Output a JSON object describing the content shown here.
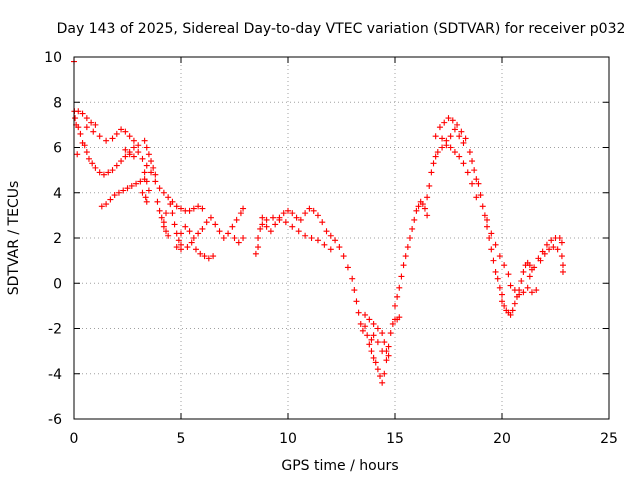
{
  "chart_data": {
    "type": "scatter",
    "title": "Day 143 of 2025, Sidereal Day-to-day VTEC variation (SDTVAR) for receiver p032",
    "xlabel": "GPS time / hours",
    "ylabel": "SDTVAR / TECUs",
    "xlim": [
      0,
      25
    ],
    "ylim": [
      -6,
      10
    ],
    "xticks": [
      0,
      5,
      10,
      15,
      20,
      25
    ],
    "yticks": [
      -6,
      -4,
      -2,
      0,
      2,
      4,
      6,
      8,
      10
    ],
    "grid": true,
    "marker": "plus",
    "series_color": "#ff0000",
    "series": [
      {
        "name": "p032",
        "points": [
          [
            0.0,
            9.8
          ],
          [
            0.02,
            7.6
          ],
          [
            0.05,
            7.3
          ],
          [
            0.1,
            7.0
          ],
          [
            0.15,
            5.7
          ],
          [
            0.2,
            6.9
          ],
          [
            0.3,
            6.6
          ],
          [
            0.4,
            6.2
          ],
          [
            0.5,
            6.1
          ],
          [
            0.6,
            5.8
          ],
          [
            0.7,
            5.5
          ],
          [
            0.85,
            5.3
          ],
          [
            1.0,
            5.1
          ],
          [
            1.2,
            4.9
          ],
          [
            1.4,
            4.8
          ],
          [
            1.6,
            4.9
          ],
          [
            1.8,
            5.0
          ],
          [
            2.0,
            5.2
          ],
          [
            2.2,
            5.4
          ],
          [
            2.4,
            5.6
          ],
          [
            2.6,
            5.8
          ],
          [
            2.8,
            6.0
          ],
          [
            3.0,
            5.8
          ],
          [
            3.2,
            5.5
          ],
          [
            3.4,
            5.2
          ],
          [
            3.6,
            4.9
          ],
          [
            3.8,
            4.5
          ],
          [
            4.0,
            4.2
          ],
          [
            4.2,
            4.0
          ],
          [
            4.4,
            3.8
          ],
          [
            4.6,
            3.6
          ],
          [
            4.8,
            3.4
          ],
          [
            5.0,
            3.3
          ],
          [
            5.2,
            3.2
          ],
          [
            5.4,
            3.2
          ],
          [
            5.6,
            3.3
          ],
          [
            5.8,
            3.4
          ],
          [
            6.0,
            3.3
          ],
          [
            0.2,
            7.6
          ],
          [
            0.4,
            7.5
          ],
          [
            0.6,
            7.3
          ],
          [
            0.8,
            7.1
          ],
          [
            1.0,
            7.0
          ],
          [
            0.6,
            6.9
          ],
          [
            0.9,
            6.7
          ],
          [
            1.2,
            6.5
          ],
          [
            1.5,
            6.3
          ],
          [
            1.8,
            6.4
          ],
          [
            2.0,
            6.6
          ],
          [
            2.2,
            6.8
          ],
          [
            2.4,
            6.7
          ],
          [
            2.6,
            6.5
          ],
          [
            2.8,
            6.3
          ],
          [
            3.0,
            6.1
          ],
          [
            2.4,
            5.9
          ],
          [
            2.6,
            5.7
          ],
          [
            2.8,
            5.6
          ],
          [
            1.3,
            3.4
          ],
          [
            1.5,
            3.5
          ],
          [
            1.7,
            3.7
          ],
          [
            1.9,
            3.9
          ],
          [
            2.1,
            4.0
          ],
          [
            2.3,
            4.1
          ],
          [
            2.5,
            4.2
          ],
          [
            2.7,
            4.3
          ],
          [
            2.9,
            4.4
          ],
          [
            3.1,
            4.5
          ],
          [
            3.3,
            4.6
          ],
          [
            3.3,
            6.3
          ],
          [
            3.4,
            6.0
          ],
          [
            3.5,
            5.7
          ],
          [
            3.6,
            5.4
          ],
          [
            3.7,
            5.1
          ],
          [
            3.8,
            4.8
          ],
          [
            3.3,
            4.9
          ],
          [
            3.4,
            4.5
          ],
          [
            3.5,
            4.1
          ],
          [
            3.35,
            3.8
          ],
          [
            3.4,
            3.6
          ],
          [
            3.2,
            4.0
          ],
          [
            3.9,
            3.6
          ],
          [
            4.0,
            3.2
          ],
          [
            4.1,
            2.9
          ],
          [
            4.2,
            2.5
          ],
          [
            4.3,
            2.3
          ],
          [
            4.4,
            2.1
          ],
          [
            4.2,
            2.7
          ],
          [
            4.3,
            3.1
          ],
          [
            4.5,
            3.5
          ],
          [
            4.6,
            3.1
          ],
          [
            4.7,
            2.6
          ],
          [
            4.8,
            2.2
          ],
          [
            4.9,
            1.9
          ],
          [
            5.0,
            1.7
          ],
          [
            4.8,
            1.6
          ],
          [
            5.0,
            1.5
          ],
          [
            5.3,
            1.6
          ],
          [
            5.5,
            1.8
          ],
          [
            5.7,
            1.5
          ],
          [
            5.9,
            1.3
          ],
          [
            6.1,
            1.2
          ],
          [
            6.3,
            1.1
          ],
          [
            6.5,
            1.2
          ],
          [
            5.0,
            2.2
          ],
          [
            5.2,
            2.5
          ],
          [
            5.4,
            2.3
          ],
          [
            5.6,
            2.0
          ],
          [
            5.8,
            2.2
          ],
          [
            6.0,
            2.4
          ],
          [
            6.2,
            2.7
          ],
          [
            6.4,
            2.9
          ],
          [
            6.6,
            2.6
          ],
          [
            6.8,
            2.3
          ],
          [
            7.0,
            2.0
          ],
          [
            7.2,
            2.2
          ],
          [
            7.4,
            2.5
          ],
          [
            7.6,
            2.8
          ],
          [
            7.8,
            3.1
          ],
          [
            7.9,
            3.3
          ],
          [
            7.5,
            2.0
          ],
          [
            7.7,
            1.8
          ],
          [
            7.9,
            2.0
          ],
          [
            8.5,
            1.3
          ],
          [
            8.6,
            1.6
          ],
          [
            8.6,
            2.0
          ],
          [
            8.7,
            2.4
          ],
          [
            8.8,
            2.6
          ],
          [
            9.0,
            2.5
          ],
          [
            9.2,
            2.3
          ],
          [
            9.4,
            2.6
          ],
          [
            9.6,
            2.9
          ],
          [
            9.8,
            3.1
          ],
          [
            10.0,
            3.2
          ],
          [
            10.2,
            3.1
          ],
          [
            10.4,
            2.9
          ],
          [
            10.6,
            2.8
          ],
          [
            10.8,
            3.1
          ],
          [
            11.0,
            3.3
          ],
          [
            11.2,
            3.2
          ],
          [
            11.4,
            3.0
          ],
          [
            11.6,
            2.7
          ],
          [
            11.8,
            2.3
          ],
          [
            12.0,
            2.1
          ],
          [
            12.2,
            1.9
          ],
          [
            12.4,
            1.6
          ],
          [
            8.8,
            2.9
          ],
          [
            9.0,
            2.8
          ],
          [
            9.3,
            2.9
          ],
          [
            9.6,
            2.8
          ],
          [
            9.9,
            2.7
          ],
          [
            10.2,
            2.5
          ],
          [
            10.5,
            2.3
          ],
          [
            10.8,
            2.1
          ],
          [
            11.1,
            2.0
          ],
          [
            11.4,
            1.9
          ],
          [
            11.7,
            1.7
          ],
          [
            12.0,
            1.5
          ],
          [
            12.6,
            1.2
          ],
          [
            12.8,
            0.7
          ],
          [
            13.0,
            0.2
          ],
          [
            13.1,
            -0.3
          ],
          [
            13.2,
            -0.8
          ],
          [
            13.3,
            -1.3
          ],
          [
            13.4,
            -1.8
          ],
          [
            13.5,
            -2.1
          ],
          [
            13.6,
            -1.9
          ],
          [
            13.7,
            -2.3
          ],
          [
            13.8,
            -2.7
          ],
          [
            13.9,
            -3.0
          ],
          [
            14.0,
            -3.3
          ],
          [
            14.1,
            -3.5
          ],
          [
            14.2,
            -3.8
          ],
          [
            14.3,
            -4.1
          ],
          [
            14.4,
            -4.4
          ],
          [
            14.5,
            -4.0
          ],
          [
            14.6,
            -3.4
          ],
          [
            14.7,
            -2.8
          ],
          [
            14.8,
            -2.2
          ],
          [
            14.9,
            -1.8
          ],
          [
            15.0,
            -1.6
          ],
          [
            15.1,
            -1.6
          ],
          [
            15.2,
            -1.5
          ],
          [
            13.6,
            -1.4
          ],
          [
            13.8,
            -1.6
          ],
          [
            14.0,
            -1.8
          ],
          [
            14.2,
            -2.0
          ],
          [
            14.4,
            -2.2
          ],
          [
            14.5,
            -2.6
          ],
          [
            14.6,
            -3.0
          ],
          [
            14.7,
            -3.2
          ],
          [
            14.4,
            -3.0
          ],
          [
            14.2,
            -2.6
          ],
          [
            14.0,
            -2.3
          ],
          [
            13.9,
            -2.5
          ],
          [
            15.0,
            -1.0
          ],
          [
            15.1,
            -0.6
          ],
          [
            15.2,
            -0.2
          ],
          [
            15.3,
            0.3
          ],
          [
            15.4,
            0.8
          ],
          [
            15.5,
            1.2
          ],
          [
            15.6,
            1.6
          ],
          [
            15.7,
            2.0
          ],
          [
            15.8,
            2.4
          ],
          [
            15.9,
            2.8
          ],
          [
            16.0,
            3.2
          ],
          [
            16.1,
            3.4
          ],
          [
            16.2,
            3.6
          ],
          [
            16.3,
            3.5
          ],
          [
            16.4,
            3.3
          ],
          [
            16.5,
            3.0
          ],
          [
            16.5,
            3.8
          ],
          [
            16.6,
            4.3
          ],
          [
            16.7,
            4.9
          ],
          [
            16.8,
            5.3
          ],
          [
            16.9,
            5.6
          ],
          [
            17.0,
            5.8
          ],
          [
            17.2,
            6.0
          ],
          [
            17.4,
            6.1
          ],
          [
            17.6,
            6.0
          ],
          [
            17.8,
            5.8
          ],
          [
            18.0,
            5.6
          ],
          [
            18.2,
            5.3
          ],
          [
            18.4,
            4.9
          ],
          [
            18.6,
            4.4
          ],
          [
            18.8,
            3.8
          ],
          [
            16.9,
            6.5
          ],
          [
            17.1,
            6.9
          ],
          [
            17.3,
            7.1
          ],
          [
            17.5,
            7.3
          ],
          [
            17.7,
            7.2
          ],
          [
            17.9,
            7.0
          ],
          [
            18.1,
            6.7
          ],
          [
            18.3,
            6.4
          ],
          [
            17.8,
            6.8
          ],
          [
            18.0,
            6.5
          ],
          [
            18.2,
            6.2
          ],
          [
            17.6,
            6.5
          ],
          [
            17.4,
            6.3
          ],
          [
            17.2,
            6.4
          ],
          [
            18.5,
            5.8
          ],
          [
            18.6,
            5.4
          ],
          [
            18.7,
            5.0
          ],
          [
            18.8,
            4.6
          ],
          [
            18.9,
            4.4
          ],
          [
            19.0,
            3.9
          ],
          [
            19.1,
            3.4
          ],
          [
            19.2,
            3.0
          ],
          [
            19.3,
            2.5
          ],
          [
            19.4,
            2.0
          ],
          [
            19.5,
            1.5
          ],
          [
            19.6,
            1.0
          ],
          [
            19.7,
            0.5
          ],
          [
            19.8,
            0.2
          ],
          [
            19.9,
            -0.2
          ],
          [
            20.0,
            -0.5
          ],
          [
            19.3,
            2.8
          ],
          [
            19.5,
            2.2
          ],
          [
            19.7,
            1.7
          ],
          [
            19.9,
            1.2
          ],
          [
            20.1,
            0.8
          ],
          [
            20.3,
            0.4
          ],
          [
            20.4,
            -0.1
          ],
          [
            20.6,
            -0.3
          ],
          [
            20.8,
            -0.5
          ],
          [
            21.0,
            -0.4
          ],
          [
            21.2,
            -0.2
          ],
          [
            21.4,
            -0.4
          ],
          [
            21.6,
            -0.3
          ],
          [
            20.0,
            -0.8
          ],
          [
            20.1,
            -1.0
          ],
          [
            20.2,
            -1.2
          ],
          [
            20.3,
            -1.3
          ],
          [
            20.4,
            -1.4
          ],
          [
            20.5,
            -1.2
          ],
          [
            20.6,
            -0.9
          ],
          [
            20.7,
            -0.6
          ],
          [
            20.8,
            -0.3
          ],
          [
            20.9,
            0.1
          ],
          [
            21.0,
            0.5
          ],
          [
            21.1,
            0.8
          ],
          [
            21.2,
            0.9
          ],
          [
            21.3,
            0.8
          ],
          [
            21.4,
            0.6
          ],
          [
            21.3,
            0.3
          ],
          [
            21.5,
            0.7
          ],
          [
            21.7,
            1.1
          ],
          [
            21.9,
            1.4
          ],
          [
            22.1,
            1.7
          ],
          [
            22.3,
            1.9
          ],
          [
            22.5,
            2.0
          ],
          [
            22.7,
            2.0
          ],
          [
            22.8,
            1.8
          ],
          [
            22.8,
            1.2
          ],
          [
            22.85,
            0.8
          ],
          [
            22.85,
            0.5
          ],
          [
            21.8,
            1.0
          ],
          [
            22.0,
            1.3
          ],
          [
            22.2,
            1.5
          ],
          [
            22.4,
            1.6
          ],
          [
            22.6,
            1.5
          ]
        ]
      }
    ]
  }
}
